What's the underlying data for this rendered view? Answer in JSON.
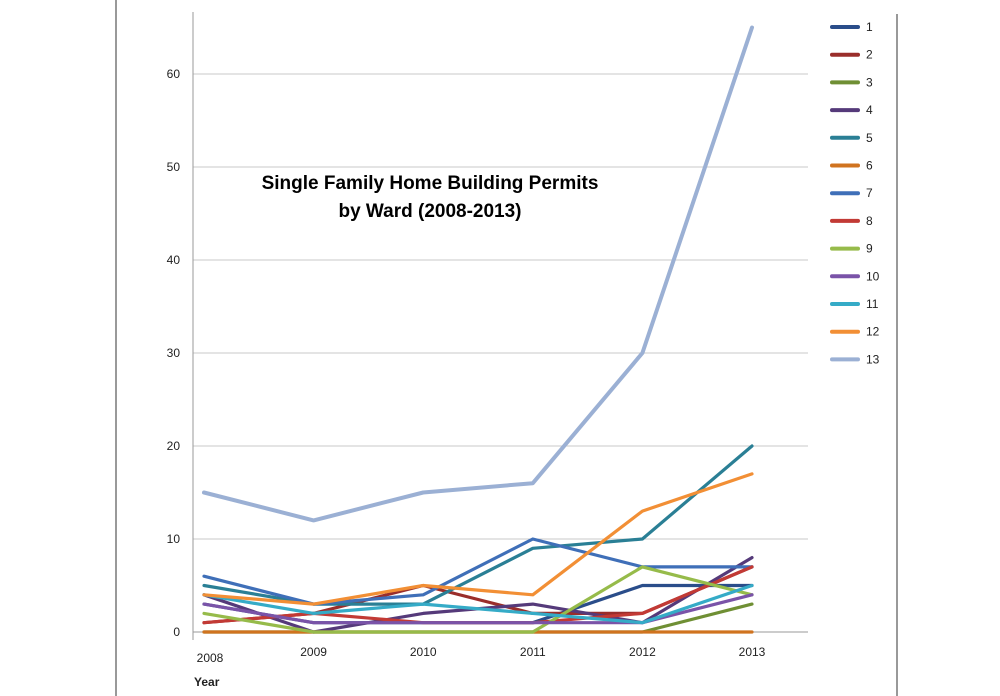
{
  "chart_data": {
    "type": "line",
    "title_lines": [
      "Single Family Home Building Permits",
      "by Ward (2008-2013)"
    ],
    "xlabel": "Year",
    "ylabel": "",
    "x": [
      "2008",
      "2009",
      "2010",
      "2011",
      "2012",
      "2013"
    ],
    "ylim": [
      0,
      70
    ],
    "yticks": [
      0,
      10,
      20,
      30,
      40,
      50,
      60
    ],
    "grid": true,
    "legend": "right",
    "series": [
      {
        "name": "1",
        "color": "#2a4d8a",
        "values": [
          3,
          1,
          1,
          1,
          5,
          5
        ]
      },
      {
        "name": "2",
        "color": "#9a2e2b",
        "values": [
          1,
          2,
          5,
          2,
          2,
          7
        ]
      },
      {
        "name": "3",
        "color": "#6f8f34",
        "values": [
          0,
          0,
          0,
          0,
          0,
          3
        ]
      },
      {
        "name": "4",
        "color": "#553a7a",
        "values": [
          4,
          0,
          2,
          3,
          1,
          8
        ]
      },
      {
        "name": "5",
        "color": "#2a7f95",
        "values": [
          5,
          3,
          3,
          9,
          10,
          20
        ]
      },
      {
        "name": "6",
        "color": "#d0731f",
        "values": [
          0,
          0,
          0,
          0,
          0,
          0
        ]
      },
      {
        "name": "7",
        "color": "#3f6fb8",
        "values": [
          6,
          3,
          4,
          10,
          7,
          7
        ]
      },
      {
        "name": "8",
        "color": "#c23a35",
        "values": [
          1,
          2,
          1,
          1,
          2,
          7
        ]
      },
      {
        "name": "9",
        "color": "#96bb4a",
        "values": [
          2,
          0,
          0,
          0,
          7,
          4
        ]
      },
      {
        "name": "10",
        "color": "#7a53a8",
        "values": [
          3,
          1,
          1,
          1,
          1,
          4
        ]
      },
      {
        "name": "11",
        "color": "#35abc7",
        "values": [
          4,
          2,
          3,
          2,
          1,
          5
        ]
      },
      {
        "name": "12",
        "color": "#f28f35",
        "values": [
          4,
          3,
          5,
          4,
          13,
          17
        ]
      },
      {
        "name": "13",
        "color": "#9bb0d4",
        "values": [
          15,
          12,
          15,
          16,
          30,
          65
        ]
      }
    ]
  }
}
